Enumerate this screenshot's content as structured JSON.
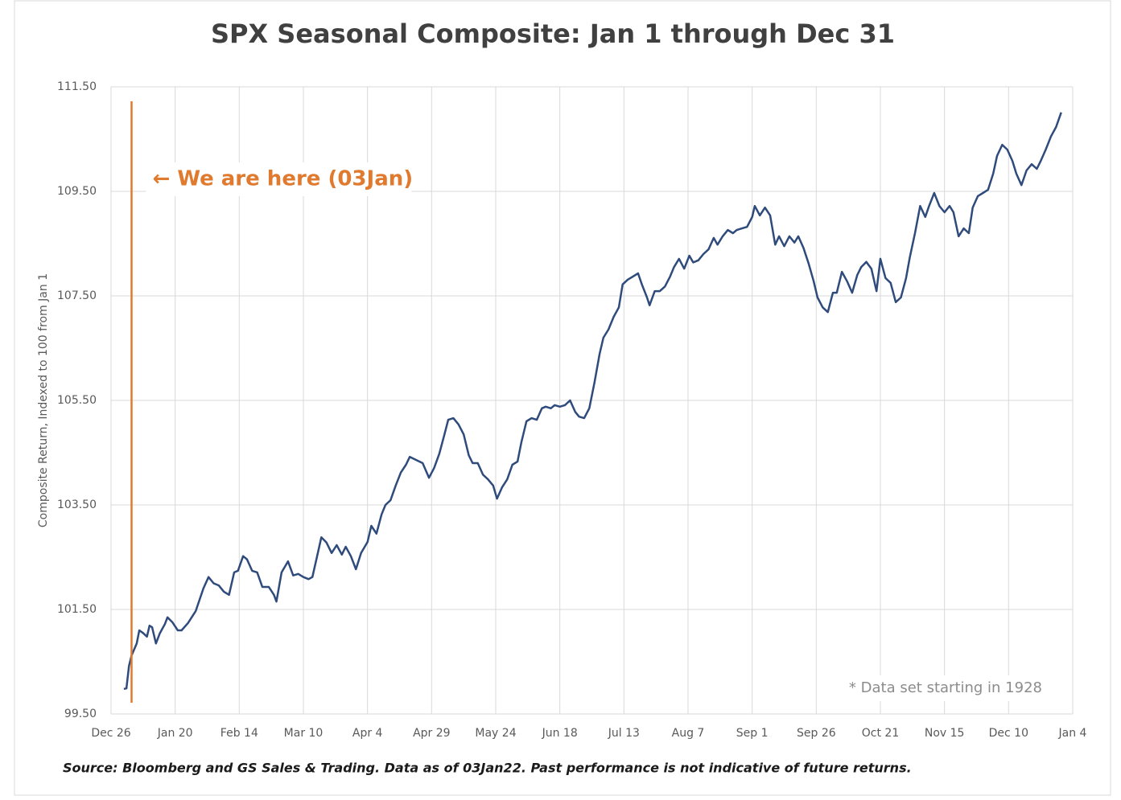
{
  "chart_data": {
    "type": "line",
    "title": "SPX Seasonal Composite: Jan 1 through Dec 31",
    "y_label": "Composite Return,  Indexed to 100 from Jan 1",
    "annotation": "* Data set starting in 1928",
    "source": "Source: Bloomberg and GS Sales & Trading. Data as of 03Jan22. Past performance is not indicative of future returns.",
    "marker": {
      "x": 8,
      "label": "← We are here (03Jan)",
      "color": "#e07a2e"
    },
    "color": "#2f4b7c",
    "grid": true,
    "xlim": [
      0,
      375
    ],
    "xticks": [
      {
        "value": 0,
        "label": "Dec 26"
      },
      {
        "value": 25,
        "label": "Jan 20"
      },
      {
        "value": 50,
        "label": "Feb 14"
      },
      {
        "value": 75,
        "label": "Mar 10"
      },
      {
        "value": 100,
        "label": "Apr 4"
      },
      {
        "value": 125,
        "label": "Apr 29"
      },
      {
        "value": 150,
        "label": "May 24"
      },
      {
        "value": 175,
        "label": "Jun 18"
      },
      {
        "value": 200,
        "label": "Jul 13"
      },
      {
        "value": 225,
        "label": "Aug 7"
      },
      {
        "value": 250,
        "label": "Sep 1"
      },
      {
        "value": 275,
        "label": "Sep 26"
      },
      {
        "value": 300,
        "label": "Oct 21"
      },
      {
        "value": 325,
        "label": "Nov 15"
      },
      {
        "value": 350,
        "label": "Dec 10"
      },
      {
        "value": 375,
        "label": "Jan 4"
      }
    ],
    "ylim": [
      99.5,
      111.5
    ],
    "yticks": [
      {
        "value": 99.5,
        "label": "99.50"
      },
      {
        "value": 101.5,
        "label": "101.50"
      },
      {
        "value": 103.5,
        "label": "103.50"
      },
      {
        "value": 105.5,
        "label": "105.50"
      },
      {
        "value": 107.5,
        "label": "107.50"
      },
      {
        "value": 109.5,
        "label": "109.50"
      },
      {
        "value": 111.5,
        "label": "111.50"
      }
    ],
    "x": [
      5,
      6,
      7,
      8,
      10,
      11,
      12.5,
      14,
      15,
      16,
      17.5,
      19,
      21,
      22,
      24,
      26,
      27.5,
      30,
      33,
      36,
      38,
      40,
      42,
      44,
      46,
      48,
      49.5,
      51.5,
      53,
      55,
      57,
      59,
      61.5,
      63.5,
      64.5,
      66.5,
      69,
      71,
      73,
      75,
      77,
      78.5,
      80.5,
      82,
      84,
      86,
      88,
      90,
      91.5,
      93.5,
      95.5,
      97.5,
      100,
      101.5,
      103.5,
      105.5,
      107,
      109,
      111,
      113,
      115,
      116.5,
      119,
      121.5,
      124,
      126,
      128,
      130,
      131.5,
      133.5,
      135.5,
      137.5,
      139.5,
      141,
      143,
      145,
      147,
      149,
      150.5,
      152.5,
      154.5,
      156.5,
      158.5,
      160,
      162,
      164,
      166,
      168,
      169.5,
      171.5,
      173,
      175,
      177,
      179,
      181,
      182.5,
      184.5,
      186.5,
      188.5,
      190.5,
      192,
      194,
      196,
      198,
      199.5,
      201.5,
      203.5,
      205.5,
      207,
      209,
      210,
      212,
      214,
      216,
      218,
      219.5,
      221.5,
      223.5,
      225.5,
      227,
      229,
      231,
      233,
      235,
      236.5,
      238.5,
      240.5,
      242.5,
      244,
      246,
      248,
      250,
      251,
      253,
      255,
      257,
      259,
      260.5,
      262.5,
      264.5,
      266.5,
      268,
      270,
      272,
      274,
      275.5,
      277.5,
      279.5,
      281.5,
      283,
      285,
      287,
      289,
      291,
      292.5,
      294.5,
      296.5,
      298.5,
      300,
      302,
      304,
      306,
      308,
      310,
      311.5,
      313.5,
      315.5,
      317.5,
      319,
      321,
      323,
      325,
      327,
      328.5,
      330.5,
      332.5,
      334.5,
      336,
      338,
      340,
      342,
      344,
      345.5,
      347.5,
      349.5,
      351.5,
      353,
      355,
      357,
      359,
      361,
      362.5,
      364.5,
      366.5,
      368.5,
      370.5
    ],
    "values": [
      99.98,
      99.99,
      100.42,
      100.62,
      100.85,
      101.1,
      101.05,
      100.98,
      101.19,
      101.16,
      100.85,
      101.04,
      101.22,
      101.35,
      101.25,
      101.1,
      101.1,
      101.24,
      101.47,
      101.9,
      102.12,
      102.0,
      101.96,
      101.84,
      101.78,
      102.21,
      102.24,
      102.52,
      102.46,
      102.24,
      102.21,
      101.93,
      101.93,
      101.78,
      101.65,
      102.21,
      102.42,
      102.15,
      102.18,
      102.12,
      102.08,
      102.12,
      102.55,
      102.88,
      102.78,
      102.58,
      102.73,
      102.55,
      102.7,
      102.52,
      102.27,
      102.58,
      102.79,
      103.1,
      102.95,
      103.32,
      103.5,
      103.59,
      103.87,
      104.12,
      104.27,
      104.42,
      104.36,
      104.3,
      104.02,
      104.21,
      104.48,
      104.85,
      105.13,
      105.16,
      105.04,
      104.85,
      104.45,
      104.3,
      104.3,
      104.08,
      103.99,
      103.87,
      103.62,
      103.84,
      103.99,
      104.27,
      104.33,
      104.7,
      105.1,
      105.16,
      105.13,
      105.35,
      105.38,
      105.35,
      105.41,
      105.38,
      105.41,
      105.5,
      105.28,
      105.19,
      105.16,
      105.35,
      105.84,
      106.39,
      106.7,
      106.86,
      107.1,
      107.28,
      107.72,
      107.81,
      107.87,
      107.93,
      107.72,
      107.47,
      107.32,
      107.59,
      107.59,
      107.68,
      107.87,
      108.05,
      108.21,
      108.02,
      108.27,
      108.14,
      108.18,
      108.3,
      108.39,
      108.61,
      108.48,
      108.64,
      108.76,
      108.7,
      108.76,
      108.79,
      108.82,
      109.01,
      109.22,
      109.04,
      109.19,
      109.04,
      108.48,
      108.64,
      108.45,
      108.64,
      108.52,
      108.64,
      108.42,
      108.12,
      107.78,
      107.47,
      107.28,
      107.19,
      107.56,
      107.56,
      107.96,
      107.78,
      107.56,
      107.9,
      108.05,
      108.15,
      108.02,
      107.59,
      108.21,
      107.84,
      107.75,
      107.38,
      107.47,
      107.84,
      108.24,
      108.7,
      109.22,
      109.01,
      109.22,
      109.47,
      109.22,
      109.1,
      109.22,
      109.1,
      108.64,
      108.79,
      108.7,
      109.19,
      109.41,
      109.47,
      109.53,
      109.84,
      110.18,
      110.39,
      110.3,
      110.08,
      109.84,
      109.62,
      109.9,
      110.02,
      109.93,
      110.08,
      110.3,
      110.55,
      110.73,
      111.01
    ]
  }
}
